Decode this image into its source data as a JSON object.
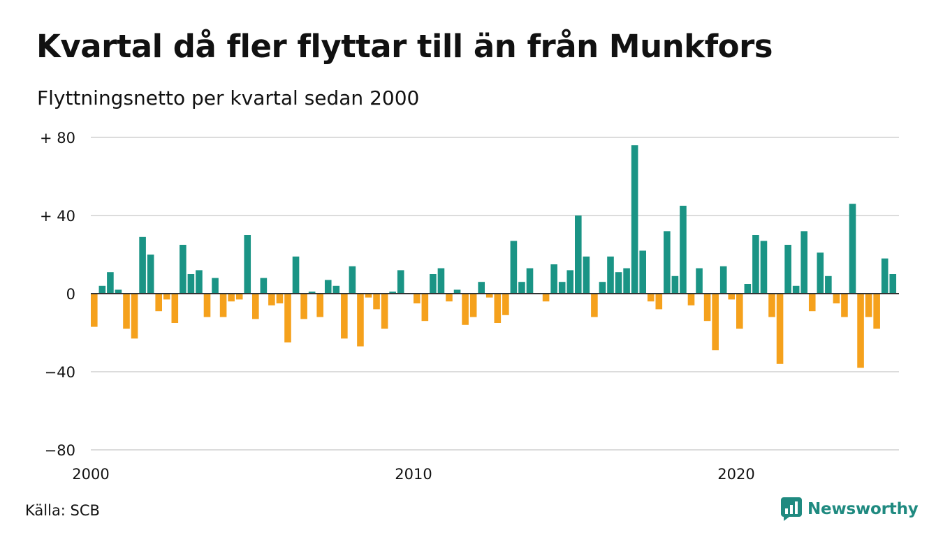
{
  "header": {
    "title": "Kvartal då fler flyttar till än från Munkfors",
    "subtitle": "Flyttningsnetto per kvartal sedan 2000"
  },
  "footer": {
    "source": "Källa: SCB",
    "brand": "Newsworthy"
  },
  "colors": {
    "positive": "#1a9485",
    "negative": "#f5a11c",
    "grid": "#dcdcdc",
    "axis": "#333333",
    "brand": "#1f8a80"
  },
  "chart_data": {
    "type": "bar",
    "x_start": "2000",
    "x_period": "quarter",
    "ylim": [
      -80,
      80
    ],
    "y_ticks": [
      80,
      40,
      0,
      -40,
      -80
    ],
    "y_tick_labels": [
      "+ 80",
      "+ 40",
      "0",
      "−40",
      "−80"
    ],
    "x_tick_labels": [
      "2000",
      "2010",
      "2020"
    ],
    "values": [
      -17,
      4,
      11,
      2,
      -18,
      -23,
      29,
      20,
      -9,
      -3,
      -15,
      25,
      10,
      12,
      -12,
      8,
      -12,
      -4,
      -3,
      30,
      -13,
      8,
      -6,
      -5,
      -25,
      19,
      -13,
      1,
      -12,
      7,
      4,
      -23,
      14,
      -27,
      -2,
      -8,
      -18,
      1,
      12,
      0,
      -5,
      -14,
      10,
      13,
      -4,
      2,
      -16,
      -12,
      6,
      -2,
      -15,
      -11,
      27,
      6,
      13,
      0,
      -4,
      15,
      6,
      12,
      40,
      19,
      -12,
      6,
      19,
      11,
      13,
      76,
      22,
      -4,
      -8,
      32,
      9,
      45,
      -6,
      13,
      -14,
      -29,
      14,
      -3,
      -18,
      5,
      30,
      27,
      -12,
      -36,
      25,
      4,
      32,
      -9,
      21,
      9,
      -5,
      -12,
      46,
      -38,
      -12,
      -18,
      18,
      10
    ]
  }
}
